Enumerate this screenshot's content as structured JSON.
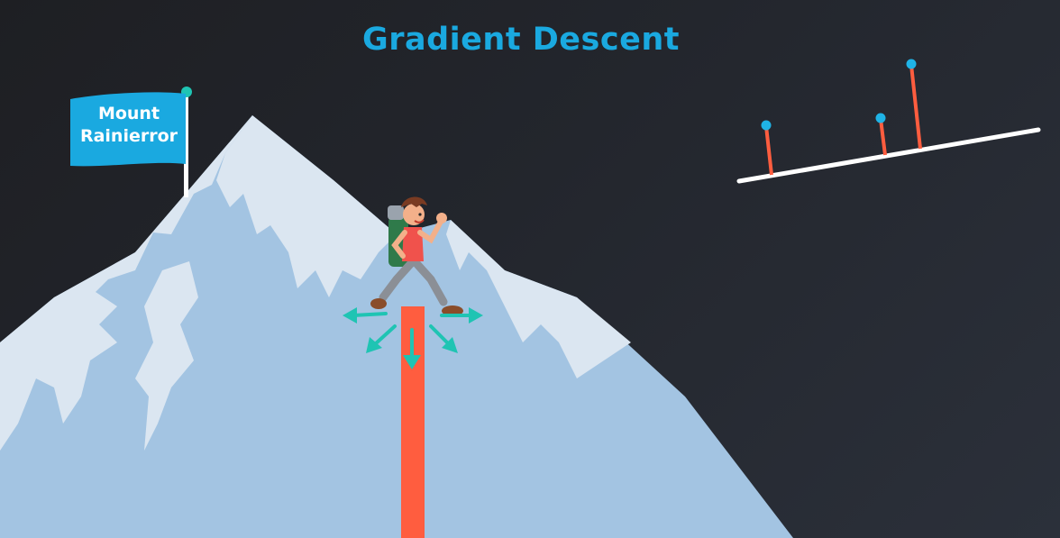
{
  "title": "Gradient Descent",
  "flag": {
    "line1": "Mount",
    "line2": "Rainierror"
  },
  "colors": {
    "title": "#1aa9e0",
    "background": "#22262e",
    "mountain_light": "#dde8f2",
    "mountain_shadow": "#a3c4e2",
    "flag": "#1aa9e0",
    "error_bar": "#ff5d3f",
    "arrows": "#1fc4b3",
    "dots": "#1fb3e6"
  },
  "icons": [
    "flag-icon",
    "hiker-icon",
    "arrow-left-icon",
    "arrow-down-left-icon",
    "arrow-down-icon",
    "arrow-down-right-icon",
    "arrow-right-icon"
  ]
}
